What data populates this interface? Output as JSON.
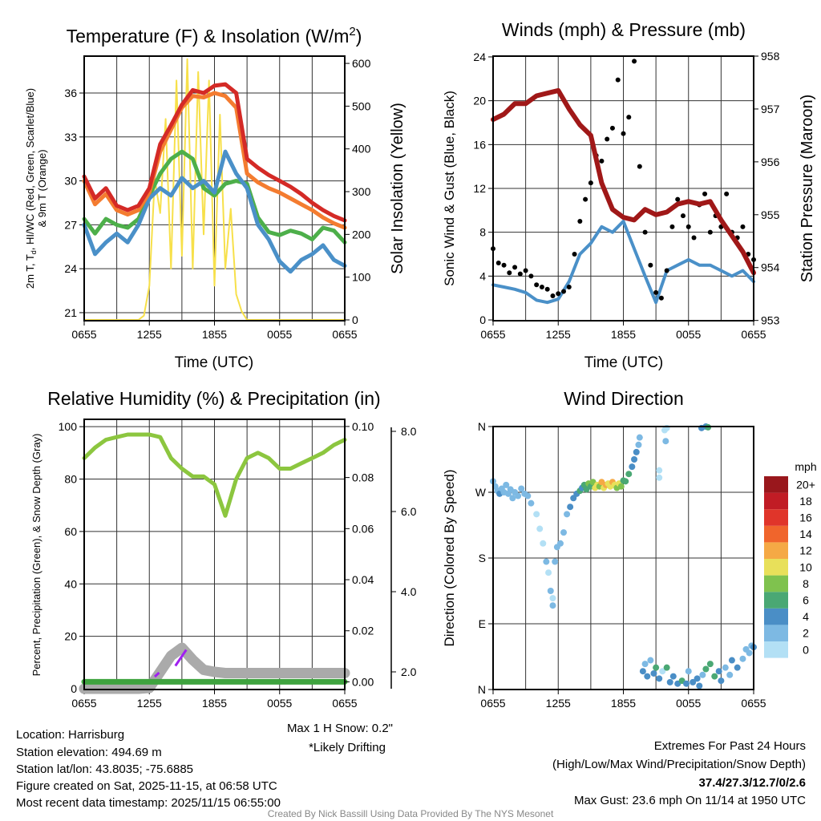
{
  "chart_data": [
    {
      "type": "line",
      "id": "temperature",
      "title_main": "Temperature (F) & Insolation (W/m",
      "title_sup": "2",
      "title_end": ")",
      "xlabel": "Time (UTC)",
      "ylabel_a": "2m T, T",
      "ylabel_sub": "d",
      "ylabel_b": ", HI/WC (Red, Green, Scarlet/Blue)",
      "ylabel_line2": "& 9m T (Orange)",
      "y2label": "Solar Insolation (Yellow)",
      "x_ticks": [
        "0655",
        "1255",
        "1855",
        "0055",
        "0655"
      ],
      "ylim": [
        20.45,
        38.52
      ],
      "y_ticks": [
        21,
        24,
        27,
        30,
        33,
        36
      ],
      "y2lim": [
        -1.9,
        617
      ],
      "y2_ticks": [
        0,
        100,
        200,
        300,
        400,
        500,
        600
      ],
      "series": [
        {
          "name": "HI/WC (Green)",
          "color": "#4daf4a",
          "values": [
            27.4,
            26.4,
            27.4,
            27.0,
            26.8,
            27.4,
            29.0,
            30.5,
            31.5,
            32.0,
            31.5,
            29.5,
            29.0,
            29.8,
            30.0,
            29.8,
            27.5,
            26.5,
            26.3,
            26.6,
            26.4,
            26.0,
            26.8,
            26.6,
            25.8
          ]
        },
        {
          "name": "Td (Blue)",
          "color": "#4a90c8",
          "values": [
            27.0,
            25.0,
            25.8,
            26.4,
            25.8,
            27.0,
            28.8,
            29.5,
            29.0,
            30.2,
            29.5,
            30.0,
            29.2,
            32.0,
            30.5,
            29.5,
            27.0,
            26.0,
            24.5,
            23.8,
            24.6,
            25.0,
            25.6,
            24.6,
            24.2
          ]
        },
        {
          "name": "9m T (Orange)",
          "color": "#f47c30",
          "values": [
            30.0,
            28.4,
            29.1,
            28.0,
            27.7,
            28.0,
            29.2,
            32.0,
            33.5,
            35.0,
            35.8,
            35.7,
            36.0,
            35.8,
            35.0,
            30.5,
            29.9,
            29.5,
            29.2,
            28.8,
            28.4,
            28.0,
            27.5,
            27.1,
            26.8
          ]
        },
        {
          "name": "2m T (Red)",
          "color": "#d42a26",
          "values": [
            30.3,
            28.8,
            29.5,
            28.3,
            28.0,
            28.3,
            29.5,
            32.5,
            33.8,
            35.2,
            36.2,
            36.0,
            36.5,
            36.6,
            36.0,
            31.5,
            30.9,
            30.4,
            30.0,
            29.6,
            29.1,
            28.5,
            28.0,
            27.6,
            27.3
          ]
        }
      ],
      "solar": {
        "name": "Solar Insolation",
        "color": "#f7e04a",
        "step_hours": 0.5,
        "values": [
          0,
          0,
          0,
          0,
          0,
          0,
          0,
          0,
          0,
          0,
          0,
          10,
          80,
          330,
          250,
          470,
          120,
          560,
          150,
          610,
          120,
          580,
          200,
          560,
          80,
          480,
          120,
          260,
          60,
          20,
          0,
          0,
          0,
          0,
          0,
          0,
          0,
          0,
          0,
          0,
          0,
          0,
          0,
          0,
          0,
          0,
          0,
          0,
          0
        ]
      }
    },
    {
      "type": "line",
      "id": "winds",
      "title": "Winds (mph) & Pressure (mb)",
      "xlabel": "Time (UTC)",
      "ylabel": "Sonic Wind & Gust (Blue, Black)",
      "y2label": "Station Pressure (Maroon)",
      "x_ticks": [
        "0655",
        "1255",
        "1855",
        "0055",
        "0655"
      ],
      "ylim": [
        -0.07,
        24.07
      ],
      "y_ticks": [
        0,
        4,
        8,
        12,
        16,
        20,
        24
      ],
      "y2lim": [
        952.995,
        958.0
      ],
      "y2_ticks": [
        953,
        954,
        955,
        956,
        957,
        958
      ],
      "sonic_wind": {
        "color": "#4a90c8",
        "values": [
          3.2,
          3.0,
          2.8,
          2.5,
          1.8,
          1.6,
          1.9,
          3.5,
          6.0,
          7.0,
          8.5,
          8.0,
          9.0,
          6.5,
          4.0,
          1.6,
          4.5,
          5.0,
          5.5,
          5.0,
          5.0,
          4.5,
          4.0,
          4.5,
          3.5
        ]
      },
      "gust": {
        "color": "#000000",
        "step_hours": 0.5,
        "values": [
          6.5,
          5.2,
          5.0,
          4.3,
          4.8,
          4.2,
          4.5,
          4.0,
          3.2,
          3.0,
          2.8,
          2.2,
          2.4,
          2.6,
          3.0,
          6.0,
          9.0,
          11.0,
          12.5,
          15.0,
          14.5,
          16.5,
          17.5,
          21.9,
          17.0,
          18.5,
          23.6,
          14.0,
          8.0,
          5.0,
          2.5,
          2.0,
          4.5,
          8.5,
          11.0,
          9.5,
          8.5,
          7.5,
          10.5,
          11.5,
          8.0,
          9.5,
          8.5,
          11.5,
          8.0,
          7.5,
          8.5,
          6.0,
          5.5
        ]
      },
      "pressure": {
        "color": "#a01818",
        "values": [
          956.8,
          956.9,
          957.1,
          957.1,
          957.25,
          957.3,
          957.35,
          957.0,
          956.7,
          956.5,
          955.6,
          955.1,
          954.95,
          954.9,
          955.1,
          955.0,
          955.05,
          955.2,
          955.25,
          955.2,
          955.25,
          954.9,
          954.6,
          954.3,
          953.9
        ]
      }
    },
    {
      "type": "line",
      "id": "humidity",
      "title": "Relative Humidity (%) & Precipitation (in)",
      "ylabel": "Percent, Precipitation (Green), & Snow Depth (Gray)",
      "x_ticks": [
        "0655",
        "1255",
        "1855",
        "0055",
        "0655"
      ],
      "ylim": [
        -0.3,
        102.8
      ],
      "y_ticks": [
        0,
        20,
        40,
        60,
        80,
        100
      ],
      "y2lim": [
        -0.003,
        0.1028
      ],
      "y2_ticks": [
        "0.00",
        "0.02",
        "0.04",
        "0.06",
        "0.08",
        "0.10"
      ],
      "snow_ylim": [
        1.56,
        8.3
      ],
      "snow_ticks": [
        "2.0",
        "4.0",
        "6.0",
        "8.0"
      ],
      "rh": {
        "color": "#8cc63f",
        "values": [
          88,
          92,
          95,
          96,
          97,
          97,
          97,
          96,
          88,
          84,
          81,
          81,
          78,
          66,
          80,
          88,
          90,
          88,
          84,
          84,
          86,
          88,
          90,
          93,
          95
        ]
      },
      "precip": {
        "color": "#3fa33f",
        "values": [
          0,
          0,
          0,
          0,
          0,
          0,
          0,
          0,
          0,
          0,
          0,
          0,
          0,
          0,
          0,
          0,
          0,
          0,
          0,
          0,
          0,
          0,
          0,
          0,
          0
        ]
      },
      "snow_depth": {
        "color": "#aaaaaa",
        "values": [
          1.58,
          1.58,
          1.58,
          1.58,
          1.58,
          1.58,
          1.6,
          2.0,
          2.4,
          2.6,
          2.3,
          2.05,
          2.0,
          1.97,
          1.97,
          1.97,
          1.97,
          1.97,
          1.97,
          1.97,
          1.97,
          1.97,
          1.97,
          1.97,
          1.97
        ]
      },
      "drifting": {
        "color": "#a020f0",
        "segments": [
          {
            "hours": [
              6.5,
              6.9
            ],
            "values": [
              1.88,
              1.98
            ]
          },
          {
            "hours": [
              8.4,
              9.4
            ],
            "values": [
              2.15,
              2.55
            ]
          }
        ]
      },
      "max_snow_note": "Max 1 H Snow: 0.2\"",
      "drifting_note": "*Likely Drifting"
    },
    {
      "type": "scatter",
      "id": "wind-direction",
      "title": "Wind Direction",
      "ylabel": "Direction (Colored By Speed)",
      "x_ticks": [
        "0655",
        "1255",
        "1855",
        "0055",
        "0655"
      ],
      "ylim": [
        0,
        360
      ],
      "y_ticks": [
        {
          "v": 0,
          "label": "N"
        },
        {
          "v": 90,
          "label": "E"
        },
        {
          "v": 180,
          "label": "S"
        },
        {
          "v": 270,
          "label": "W"
        },
        {
          "v": 360,
          "label": "N"
        }
      ],
      "points_hour_dir_speed": [
        [
          0,
          285,
          3
        ],
        [
          0.2,
          278,
          3
        ],
        [
          0.4,
          272,
          2
        ],
        [
          0.6,
          268,
          4
        ],
        [
          0.8,
          275,
          3
        ],
        [
          1,
          270,
          2
        ],
        [
          1.2,
          280,
          3
        ],
        [
          1.4,
          268,
          3
        ],
        [
          1.6,
          274,
          2
        ],
        [
          1.8,
          262,
          3
        ],
        [
          2,
          270,
          2
        ],
        [
          2.3,
          265,
          3
        ],
        [
          2.6,
          275,
          3
        ],
        [
          2.9,
          268,
          2
        ],
        [
          3.2,
          265,
          3
        ],
        [
          3.5,
          255,
          2
        ],
        [
          4,
          240,
          1
        ],
        [
          4.3,
          220,
          1
        ],
        [
          4.6,
          200,
          1
        ],
        [
          4.9,
          175,
          2
        ],
        [
          5.1,
          160,
          1
        ],
        [
          5.3,
          135,
          2
        ],
        [
          5.5,
          115,
          2
        ],
        [
          5.5,
          125,
          1
        ],
        [
          5.7,
          175,
          3
        ],
        [
          5.9,
          195,
          2
        ],
        [
          6.2,
          200,
          3
        ],
        [
          6.5,
          215,
          3
        ],
        [
          6.8,
          240,
          3
        ],
        [
          7.1,
          250,
          4
        ],
        [
          7.4,
          262,
          4
        ],
        [
          7.7,
          268,
          5
        ],
        [
          8,
          272,
          6
        ],
        [
          8.2,
          276,
          5
        ],
        [
          8.4,
          280,
          7
        ],
        [
          8.6,
          274,
          6
        ],
        [
          8.8,
          282,
          8
        ],
        [
          9,
          278,
          7
        ],
        [
          9.2,
          284,
          9
        ],
        [
          9.4,
          276,
          10
        ],
        [
          9.6,
          280,
          11
        ],
        [
          9.8,
          278,
          9
        ],
        [
          10,
          284,
          12
        ],
        [
          10.2,
          276,
          10
        ],
        [
          10.4,
          280,
          12
        ],
        [
          10.6,
          282,
          11
        ],
        [
          10.8,
          278,
          10
        ],
        [
          11,
          284,
          13
        ],
        [
          11.2,
          280,
          10
        ],
        [
          11.4,
          276,
          8
        ],
        [
          11.6,
          282,
          11
        ],
        [
          11.8,
          278,
          9
        ],
        [
          12,
          286,
          7
        ],
        [
          12.2,
          285,
          6
        ],
        [
          12.5,
          295,
          6
        ],
        [
          12.8,
          305,
          4
        ],
        [
          13,
          315,
          4
        ],
        [
          13.2,
          325,
          4
        ],
        [
          13.4,
          335,
          3
        ],
        [
          13.5,
          345,
          2
        ],
        [
          15.3,
          300,
          1
        ],
        [
          15.3,
          290,
          1
        ],
        [
          15.8,
          355,
          1
        ],
        [
          15.9,
          340,
          2
        ],
        [
          16,
          358,
          1
        ],
        [
          19.2,
          358,
          4
        ],
        [
          19.6,
          360,
          5
        ],
        [
          19.8,
          359,
          6
        ],
        [
          13.8,
          25,
          4
        ],
        [
          14,
          35,
          3
        ],
        [
          14.2,
          18,
          4
        ],
        [
          14.5,
          40,
          3
        ],
        [
          14.8,
          22,
          5
        ],
        [
          15,
          30,
          6
        ],
        [
          15.3,
          15,
          5
        ],
        [
          15.6,
          25,
          1
        ],
        [
          16,
          30,
          6
        ],
        [
          16.3,
          10,
          5
        ],
        [
          16.6,
          18,
          4
        ],
        [
          17,
          8,
          4
        ],
        [
          17.4,
          12,
          6
        ],
        [
          17.8,
          8,
          5
        ],
        [
          18,
          25,
          3
        ],
        [
          18.4,
          10,
          5
        ],
        [
          18.8,
          15,
          4
        ],
        [
          19,
          5,
          5
        ],
        [
          19.3,
          20,
          3
        ],
        [
          19.6,
          28,
          6
        ],
        [
          20,
          35,
          7
        ],
        [
          20.4,
          18,
          6
        ],
        [
          20.8,
          25,
          4
        ],
        [
          21,
          12,
          5
        ],
        [
          21.4,
          30,
          3
        ],
        [
          21.8,
          20,
          3
        ],
        [
          22,
          40,
          5
        ],
        [
          22.5,
          30,
          4
        ],
        [
          23,
          42,
          3
        ],
        [
          23.3,
          55,
          3
        ],
        [
          23.6,
          50,
          2
        ],
        [
          23.8,
          60,
          3
        ],
        [
          24,
          58,
          4
        ]
      ],
      "colorbar": {
        "unit": "mph",
        "bins": [
          {
            "label": "0",
            "color": "#b3e0f5"
          },
          {
            "label": "2",
            "color": "#7db9e3"
          },
          {
            "label": "4",
            "color": "#4a8ec6"
          },
          {
            "label": "6",
            "color": "#4aa874"
          },
          {
            "label": "8",
            "color": "#7fc24e"
          },
          {
            "label": "10",
            "color": "#e8e05a"
          },
          {
            "label": "12",
            "color": "#f5a945"
          },
          {
            "label": "14",
            "color": "#f0652c"
          },
          {
            "label": "16",
            "color": "#e0352a"
          },
          {
            "label": "18",
            "color": "#c11c25"
          },
          {
            "label": "20+",
            "color": "#99171c"
          }
        ]
      }
    }
  ],
  "info": {
    "location": "Location: Harrisburg",
    "elevation": "Station elevation: 494.69 m",
    "latlon": "Station lat/lon: 43.8035; -75.6885",
    "created": "Figure created on Sat, 2025-11-15, at 06:58 UTC",
    "recent": "Most recent data timestamp: 2025/11/15 06:55:00"
  },
  "extremes": {
    "heading": "Extremes For Past 24 Hours",
    "fields": "(High/Low/Max Wind/Precipitation/Snow Depth)",
    "values": "37.4/27.3/12.7/0/2.6",
    "values_color": "#c8202a",
    "max_gust": "Max Gust: 23.6 mph On 11/14 at 1950 UTC"
  },
  "footer": "Created By Nick Bassill Using Data Provided By The NYS Mesonet"
}
